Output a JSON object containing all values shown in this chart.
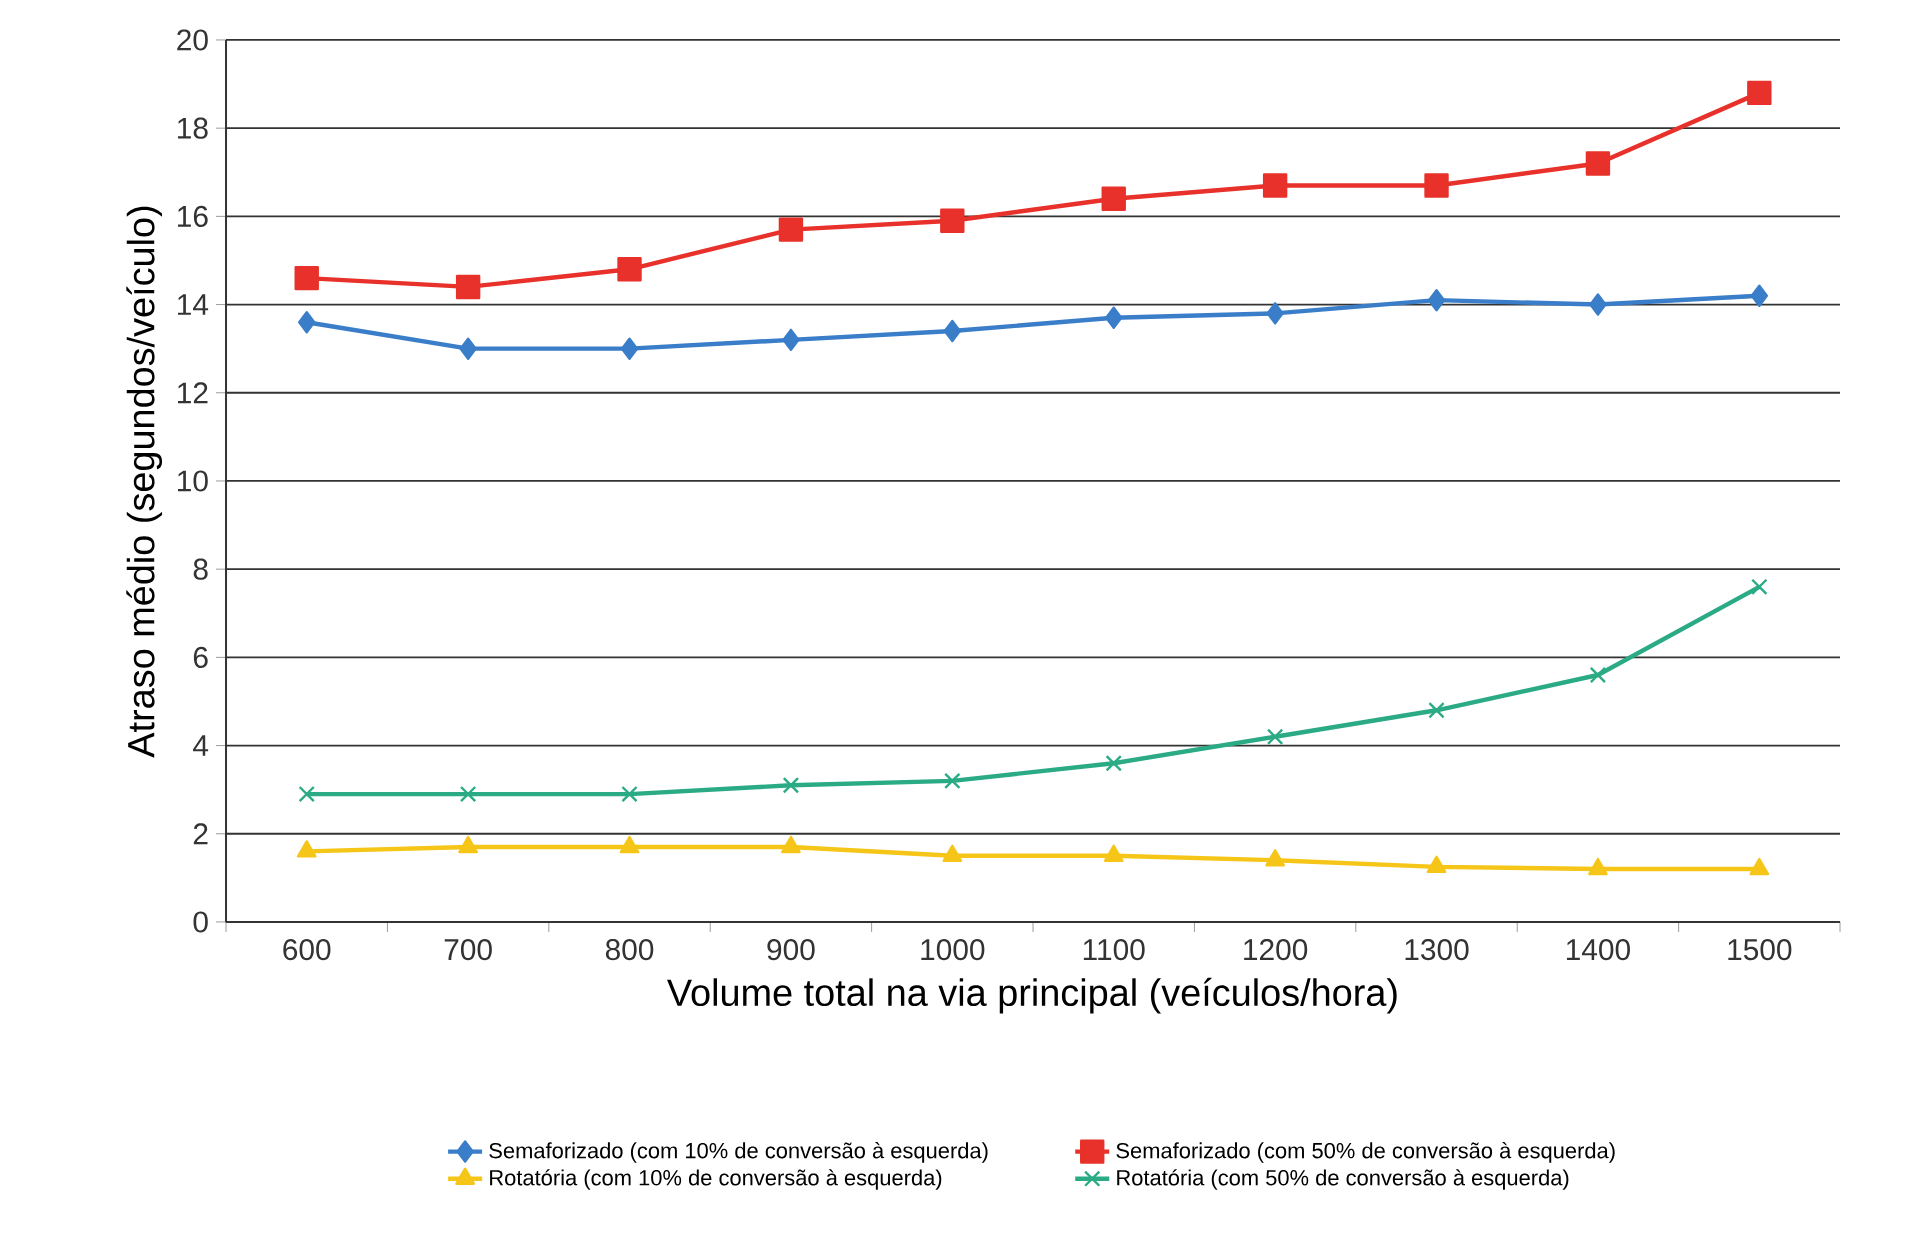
{
  "chart_data": {
    "type": "line",
    "xlabel": "Volume total na via principal (veículos/hora)",
    "ylabel": "Atraso médio (segundos/veículo)",
    "categories": [
      "600",
      "700",
      "800",
      "900",
      "1000",
      "1100",
      "1200",
      "1300",
      "1400",
      "1500"
    ],
    "ylim": [
      0,
      20
    ],
    "yticks": [
      0,
      2,
      4,
      6,
      8,
      10,
      12,
      14,
      16,
      18,
      20
    ],
    "grid": "y",
    "legend": "bottom",
    "series": [
      {
        "name": "Semaforizado (com 10% de conversão à esquerda)",
        "color": "#3a7dc9",
        "marker": "diamond",
        "values": [
          13.6,
          13.0,
          13.0,
          13.2,
          13.4,
          13.7,
          13.8,
          14.1,
          14.0,
          14.2
        ]
      },
      {
        "name": "Semaforizado (com 50% de conversão à esquerda)",
        "color": "#e8312a",
        "marker": "square",
        "values": [
          14.6,
          14.4,
          14.8,
          15.7,
          15.9,
          16.4,
          16.7,
          16.7,
          17.2,
          18.8
        ]
      },
      {
        "name": "Rotatória (com 10% de conversão à esquerda)",
        "color": "#f5c518",
        "marker": "triangle",
        "values": [
          1.6,
          1.7,
          1.7,
          1.7,
          1.5,
          1.5,
          1.4,
          1.25,
          1.2,
          1.2
        ]
      },
      {
        "name": "Rotatória (com 50% de conversão à esquerda)",
        "color": "#2bab85",
        "marker": "cross",
        "values": [
          2.9,
          2.9,
          2.9,
          3.1,
          3.2,
          3.6,
          4.2,
          4.8,
          5.6,
          7.6
        ]
      }
    ]
  }
}
